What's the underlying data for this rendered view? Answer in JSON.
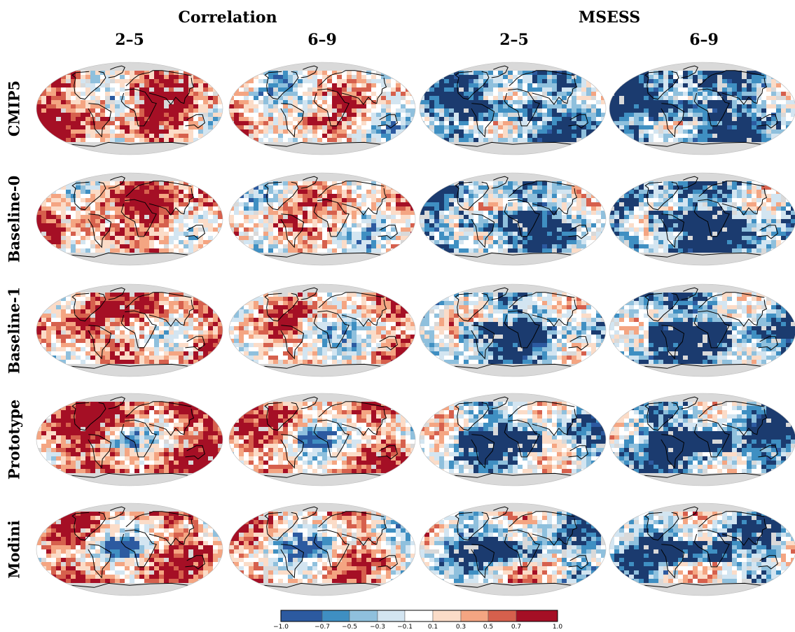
{
  "group_titles": [
    "Correlation",
    "MSESS"
  ],
  "column_titles": [
    "2–5",
    "6–9",
    "2–5",
    "6–9"
  ],
  "row_labels": [
    "CMIP5",
    "Baseline-0",
    "Baseline-1",
    "Prototype",
    "Modini"
  ],
  "colorbar": {
    "ticks": [
      "−1.0",
      "−0.7",
      "−0.5",
      "−0.3",
      "−0.1",
      "0.1",
      "0.3",
      "0.5",
      "0.7",
      "1.0"
    ],
    "bins": [
      {
        "range": "-1.0 to -0.7",
        "color": "#2c5aa0"
      },
      {
        "range": "-0.7 to -0.5",
        "color": "#3f8fc2"
      },
      {
        "range": "-0.5 to -0.3",
        "color": "#8fc0dd"
      },
      {
        "range": "-0.3 to -0.1",
        "color": "#d3e5f1"
      },
      {
        "range": "-0.1 to 0.1",
        "color": "#ffffff"
      },
      {
        "range": "0.1 to 0.3",
        "color": "#fbdcc8"
      },
      {
        "range": "0.3 to 0.5",
        "color": "#f4a582"
      },
      {
        "range": "0.5 to 0.7",
        "color": "#d6604d"
      },
      {
        "range": "0.7 to 1.0",
        "color": "#a50f25"
      }
    ]
  },
  "colors": {
    "land_missing": "#d9d9d9",
    "coastline": "#000000",
    "dark_blue": "#1b3b6f"
  }
}
